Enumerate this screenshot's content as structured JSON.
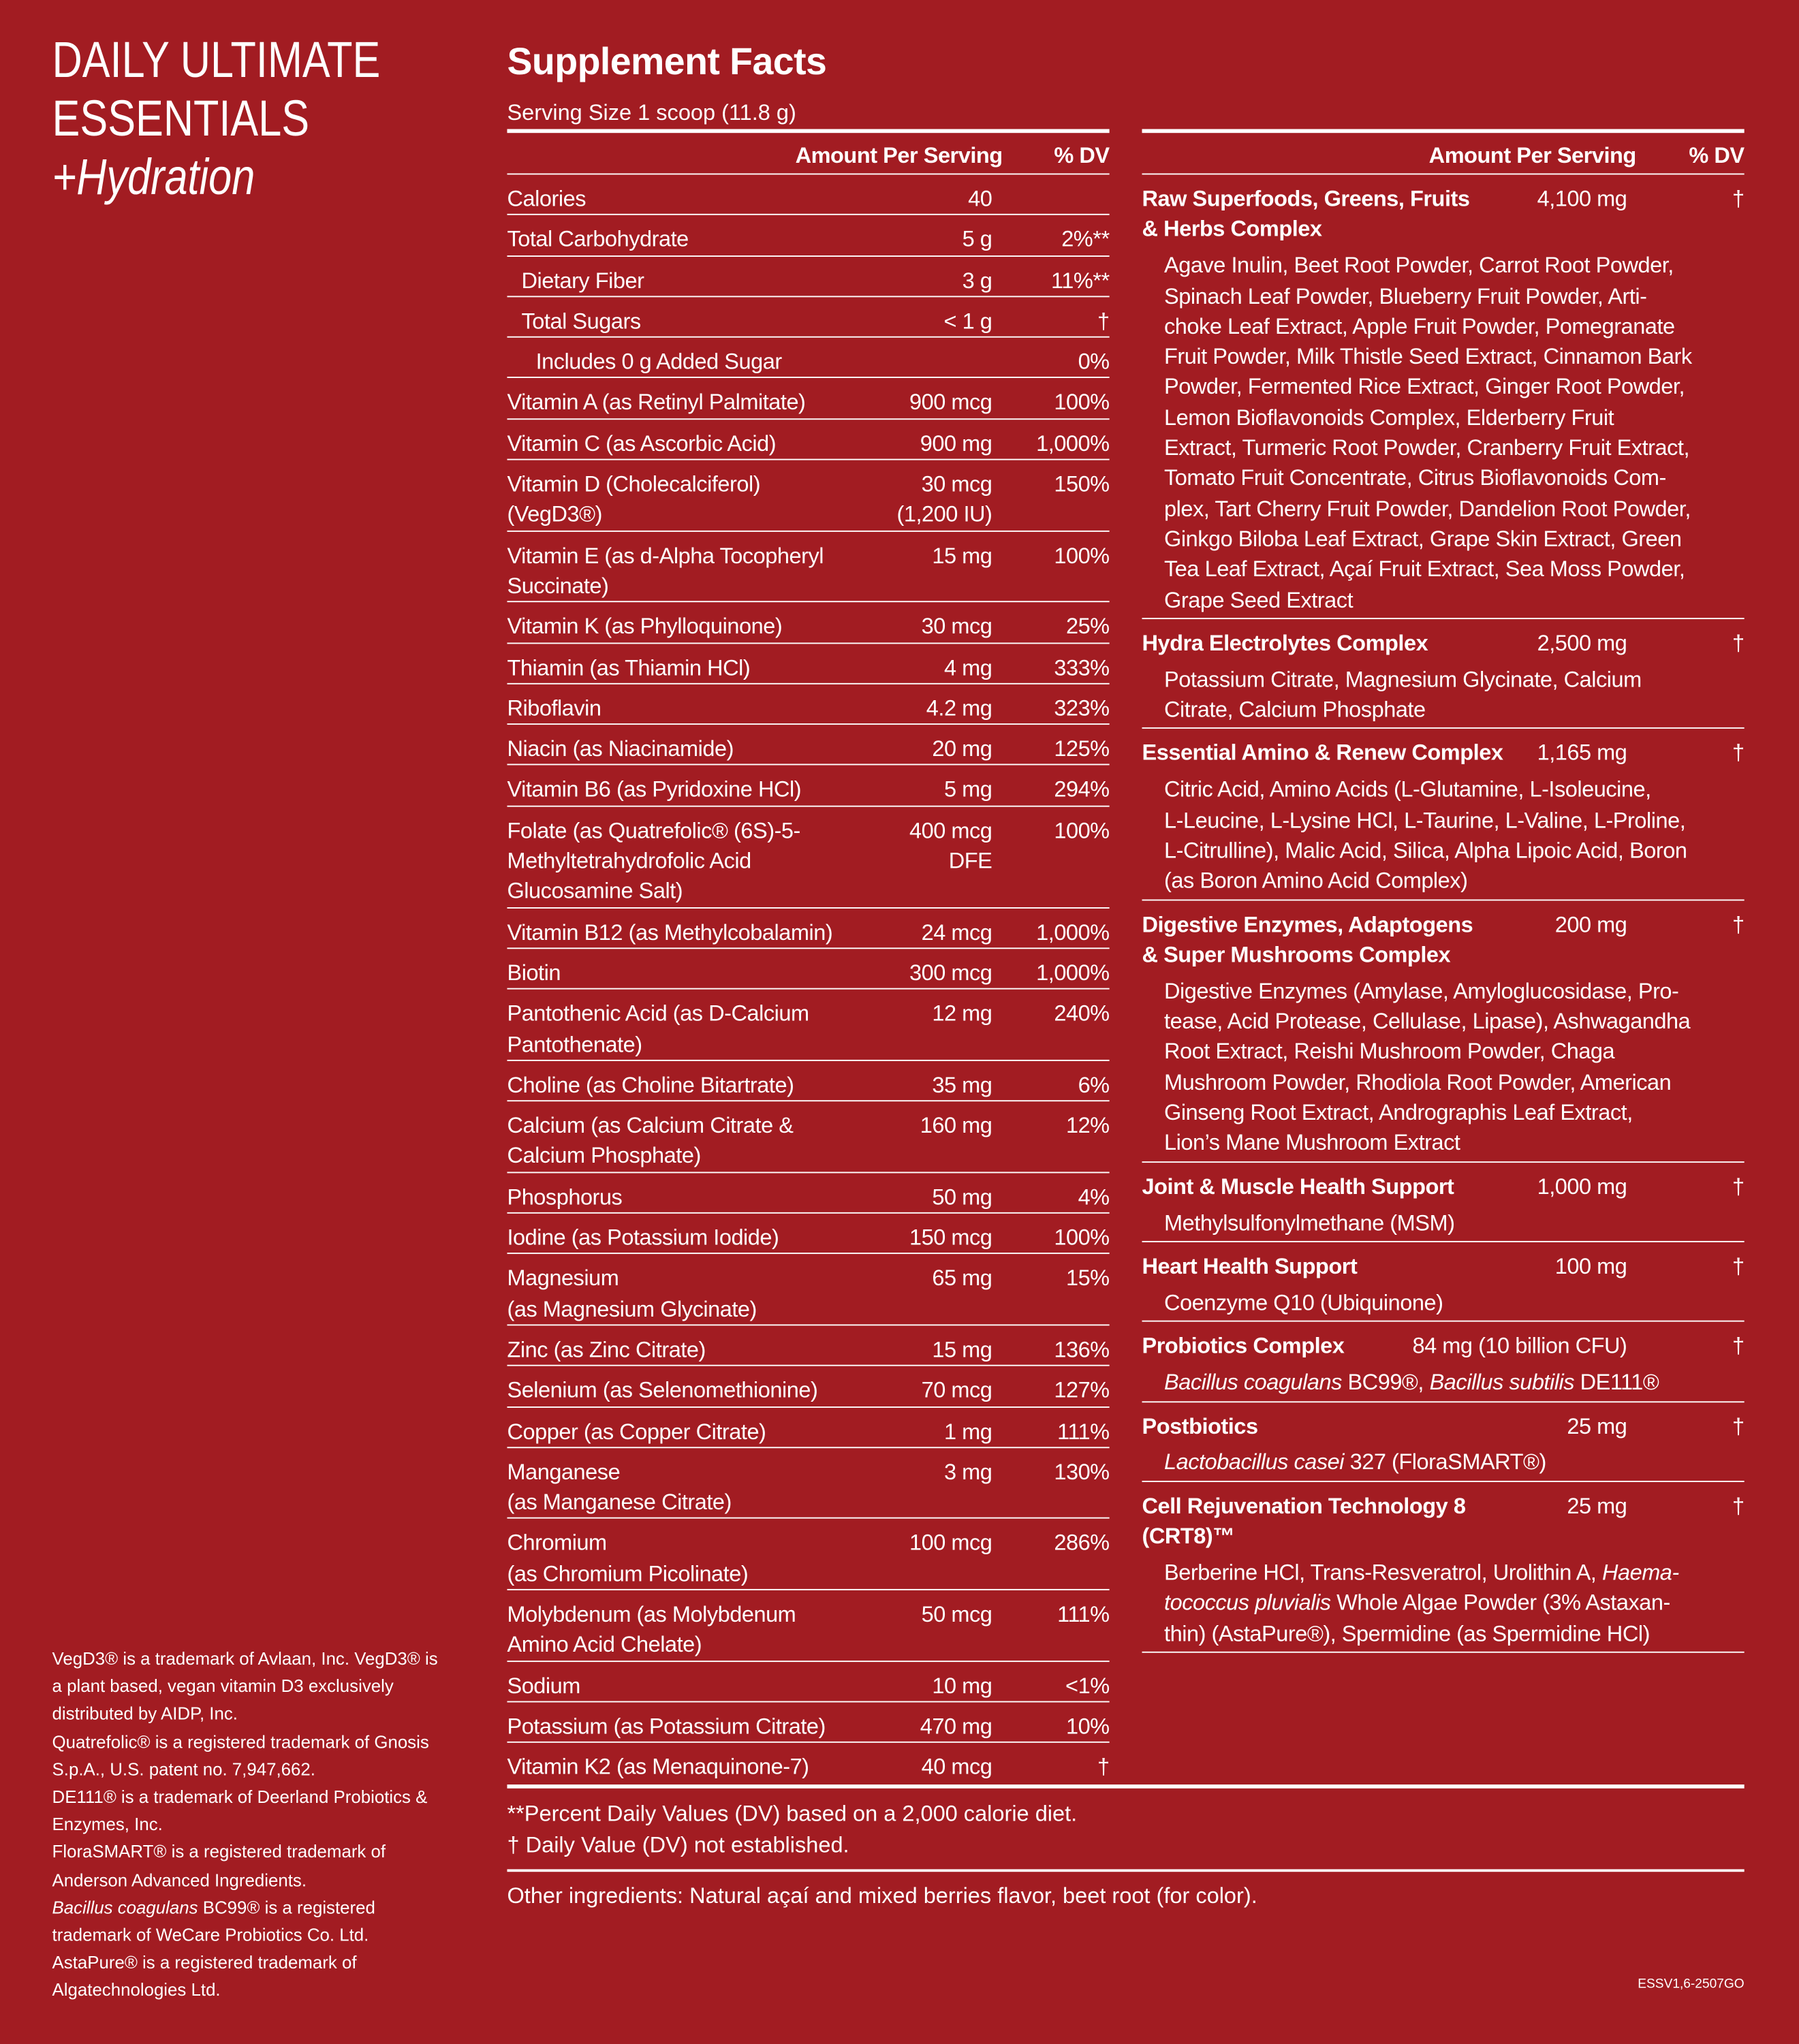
{
  "product": {
    "line1": "DAILY ULTIMATE",
    "line2": "ESSENTIALS",
    "line3": "+Hydration"
  },
  "panel": {
    "title": "Supplement Facts",
    "serving_size": "Serving Size 1 scoop (11.8 g)",
    "header_amount": "Amount Per Serving",
    "header_dv": "% DV"
  },
  "left_rows": [
    {
      "name": "Calories",
      "amount": "40",
      "dv": "",
      "indent": 0
    },
    {
      "name": "Total Carbohydrate",
      "amount": "5 g",
      "dv": "2%**",
      "indent": 0
    },
    {
      "name": "Dietary Fiber",
      "amount": "3 g",
      "dv": "11%**",
      "indent": 1
    },
    {
      "name": "Total Sugars",
      "amount": "< 1 g",
      "dv": "†",
      "indent": 1
    },
    {
      "name": "Includes 0 g Added Sugar",
      "amount": "",
      "dv": "0%",
      "indent": 2
    },
    {
      "name": "Vitamin A (as Retinyl Palmitate)",
      "amount": "900 mcg",
      "dv": "100%",
      "indent": 0
    },
    {
      "name": "Vitamin C (as Ascorbic Acid)",
      "amount": "900 mg",
      "dv": "1,000%",
      "indent": 0
    },
    {
      "name": "Vitamin D (Cholecalciferol)\n(VegD3®)",
      "amount": "30 mcg\n(1,200 IU)",
      "dv": "150%",
      "indent": 0
    },
    {
      "name": "Vitamin E (as d-Alpha Tocopheryl\nSuccinate)",
      "amount": "15 mg",
      "dv": "100%",
      "indent": 0
    },
    {
      "name": "Vitamin K (as Phylloquinone)",
      "amount": "30 mcg",
      "dv": "25%",
      "indent": 0
    },
    {
      "name": "Thiamin (as Thiamin HCl)",
      "amount": "4 mg",
      "dv": "333%",
      "indent": 0
    },
    {
      "name": "Riboflavin",
      "amount": "4.2 mg",
      "dv": "323%",
      "indent": 0
    },
    {
      "name": "Niacin (as Niacinamide)",
      "amount": "20 mg",
      "dv": "125%",
      "indent": 0
    },
    {
      "name": "Vitamin B6 (as Pyridoxine HCl)",
      "amount": "5 mg",
      "dv": "294%",
      "indent": 0
    },
    {
      "name": "Folate (as Quatrefolic® (6S)-5-\nMethyltetrahydrofolic Acid\nGlucosamine Salt)",
      "amount": "400 mcg\nDFE",
      "dv": "100%",
      "indent": 0
    },
    {
      "name": "Vitamin B12 (as Methylcobalamin)",
      "amount": "24 mcg",
      "dv": "1,000%",
      "indent": 0
    },
    {
      "name": "Biotin",
      "amount": "300 mcg",
      "dv": "1,000%",
      "indent": 0
    },
    {
      "name": "Pantothenic Acid (as D-Calcium\nPantothenate)",
      "amount": "12 mg",
      "dv": "240%",
      "indent": 0
    },
    {
      "name": "Choline (as Choline Bitartrate)",
      "amount": "35 mg",
      "dv": "6%",
      "indent": 0
    },
    {
      "name": "Calcium (as Calcium Citrate &\nCalcium Phosphate)",
      "amount": "160 mg",
      "dv": "12%",
      "indent": 0
    },
    {
      "name": "Phosphorus",
      "amount": "50 mg",
      "dv": "4%",
      "indent": 0
    },
    {
      "name": "Iodine (as Potassium Iodide)",
      "amount": "150 mcg",
      "dv": "100%",
      "indent": 0
    },
    {
      "name": "Magnesium\n(as Magnesium Glycinate)",
      "amount": "65 mg",
      "dv": "15%",
      "indent": 0
    },
    {
      "name": "Zinc (as Zinc Citrate)",
      "amount": "15 mg",
      "dv": "136%",
      "indent": 0
    },
    {
      "name": "Selenium (as Selenomethionine)",
      "amount": "70 mcg",
      "dv": "127%",
      "indent": 0
    },
    {
      "name": "Copper (as Copper Citrate)",
      "amount": "1 mg",
      "dv": "111%",
      "indent": 0
    },
    {
      "name": "Manganese\n(as Manganese Citrate)",
      "amount": "3 mg",
      "dv": "130%",
      "indent": 0
    },
    {
      "name": "Chromium\n(as Chromium Picolinate)",
      "amount": "100 mcg",
      "dv": "286%",
      "indent": 0
    },
    {
      "name": "Molybdenum (as Molybdenum\nAmino Acid Chelate)",
      "amount": "50 mcg",
      "dv": "111%",
      "indent": 0
    },
    {
      "name": "Sodium",
      "amount": "10 mg",
      "dv": "<1%",
      "indent": 0
    },
    {
      "name": "Potassium (as Potassium Citrate)",
      "amount": "470 mg",
      "dv": "10%",
      "indent": 0
    },
    {
      "name": "Vitamin K2 (as Menaquinone-7)",
      "amount": "40 mcg",
      "dv": "†",
      "indent": 0
    }
  ],
  "right_groups": [
    {
      "name": "Raw Superfoods, Greens, Fruits\n& Herbs Complex",
      "amount": "4,100 mg",
      "dv": "†",
      "content": [
        {
          "t": "Agave Inulin, Beet Root Powder, Carrot Root Powder,\nSpinach Leaf Powder, Blueberry Fruit Powder, Arti-\nchoke Leaf Extract, Apple Fruit Powder, Pomegranate\nFruit Powder, Milk Thistle Seed Extract, Cinnamon Bark\nPowder, Fermented Rice Extract, Ginger Root Powder,\nLemon Bioflavonoids Complex, Elderberry Fruit\nExtract, Turmeric Root Powder, Cranberry Fruit Extract,\nTomato Fruit Concentrate, Citrus Bioflavonoids Com-\nplex, Tart Cherry Fruit Powder, Dandelion Root Powder,\nGinkgo Biloba Leaf Extract, Grape Skin Extract, Green\nTea Leaf Extract, Açaí Fruit Extract, Sea Moss Powder,\nGrape Seed Extract",
          "i": false
        }
      ]
    },
    {
      "name": "Hydra Electrolytes Complex",
      "amount": "2,500 mg",
      "dv": "†",
      "content": [
        {
          "t": "Potassium Citrate, Magnesium Glycinate, Calcium\nCitrate, Calcium Phosphate",
          "i": false
        }
      ]
    },
    {
      "name": "Essential Amino & Renew Complex",
      "amount": "1,165 mg",
      "dv": "†",
      "content": [
        {
          "t": "Citric Acid, Amino Acids (L-Glutamine, L-Isoleucine,\nL-Leucine, L-Lysine HCl, L-Taurine, L-Valine, L-Proline,\nL-Citrulline), Malic Acid, Silica, Alpha Lipoic Acid, Boron\n(as Boron Amino Acid Complex)",
          "i": false
        }
      ]
    },
    {
      "name": "Digestive Enzymes, Adaptogens\n& Super Mushrooms Complex",
      "amount": "200 mg",
      "dv": "†",
      "content": [
        {
          "t": "Digestive Enzymes (Amylase, Amyloglucosidase, Pro-\ntease, Acid Protease, Cellulase, Lipase), Ashwagandha\nRoot Extract, Reishi Mushroom Powder, Chaga\nMushroom Powder, Rhodiola Root Powder, American\nGinseng Root Extract, Andrographis Leaf Extract,\nLion’s Mane Mushroom Extract",
          "i": false
        }
      ]
    },
    {
      "name": "Joint & Muscle Health Support",
      "amount": "1,000 mg",
      "dv": "†",
      "content": [
        {
          "t": "Methylsulfonylmethane (MSM)",
          "i": false
        }
      ]
    },
    {
      "name": "Heart Health Support",
      "amount": "100 mg",
      "dv": "†",
      "content": [
        {
          "t": "Coenzyme Q10 (Ubiquinone)",
          "i": false
        }
      ]
    },
    {
      "name": "Probiotics Complex",
      "amount": "84 mg (10 billion CFU)",
      "dv": "†",
      "content": [
        {
          "t": "Bacillus coagulans",
          "i": true
        },
        {
          "t": " BC99®, ",
          "i": false
        },
        {
          "t": "Bacillus subtilis",
          "i": true
        },
        {
          "t": " DE111®",
          "i": false
        }
      ]
    },
    {
      "name": "Postbiotics",
      "amount": "25 mg",
      "dv": "†",
      "content": [
        {
          "t": "Lactobacillus casei",
          "i": true
        },
        {
          "t": " 327 (FloraSMART®)",
          "i": false
        }
      ]
    },
    {
      "name": "Cell Rejuvenation Technology 8\n(CRT8)™",
      "amount": "25 mg",
      "dv": "†",
      "content": [
        {
          "t": "Berberine HCl, Trans-Resveratrol, Urolithin A, ",
          "i": false
        },
        {
          "t": "Haema-\ntococcus pluvialis",
          "i": true
        },
        {
          "t": " Whole Algae Powder (3% Astaxan-\nthin) (AstaPure®), Spermidine (as Spermidine HCl)",
          "i": false
        }
      ]
    }
  ],
  "footnotes": {
    "dv_note": "**Percent Daily Values (DV) based on a 2,000 calorie diet.",
    "dagger_note": "† Daily Value (DV) not established.",
    "other_ingredients": "Other ingredients: Natural açaí and mixed berries flavor, beet root (for color)."
  },
  "legal": [
    [
      {
        "t": "VegD3® is a trademark of Avlaan, Inc. VegD3® is\na plant based, vegan vitamin D3 exclusively\ndistributed by AIDP, Inc.",
        "i": false
      }
    ],
    [
      {
        "t": "Quatrefolic® is a registered trademark of Gnosis\nS.p.A., U.S. patent no. 7,947,662.",
        "i": false
      }
    ],
    [
      {
        "t": "DE111® is a trademark of Deerland Probiotics &\nEnzymes, Inc.",
        "i": false
      }
    ],
    [
      {
        "t": "FloraSMART® is a registered trademark of\nAnderson Advanced Ingredients.",
        "i": false
      }
    ],
    [
      {
        "t": "Bacillus coagulans",
        "i": true
      },
      {
        "t": " BC99® is a registered\ntrademark of WeCare Probiotics Co. Ltd.",
        "i": false
      }
    ],
    [
      {
        "t": "AstaPure® is a registered trademark of\nAlgatechnologies Ltd.",
        "i": false
      }
    ]
  ],
  "code": "ESSV1,6-2507GO",
  "colors": {
    "background": "#a21c22",
    "text": "#ffffff"
  }
}
